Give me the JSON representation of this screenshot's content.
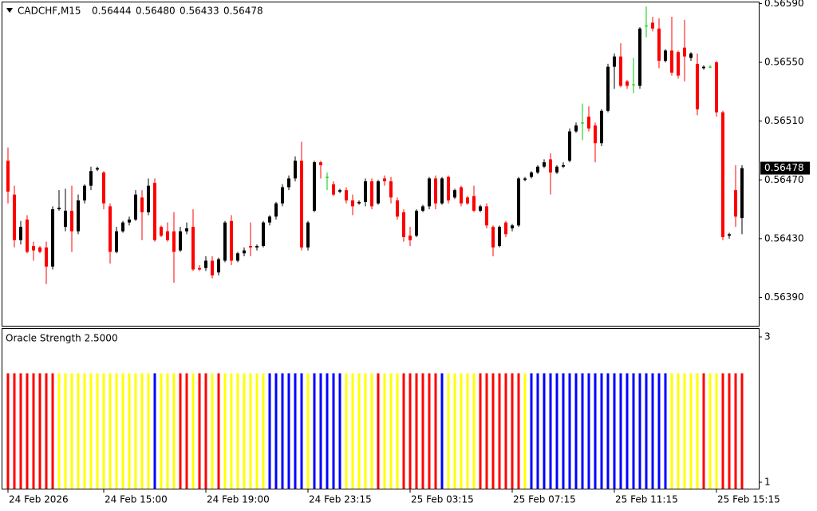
{
  "chart_data": [
    {
      "type": "candlestick",
      "title": "CADCHF,M15",
      "ohlc_labels": [
        "0.56444",
        "0.56480",
        "0.56433",
        "0.56478"
      ],
      "categories": [
        "24 Feb 2026",
        null,
        null,
        null,
        null,
        null,
        null,
        null,
        null,
        null,
        null,
        null,
        null,
        null,
        null,
        "24 Feb 15:00",
        null,
        null,
        null,
        null,
        null,
        null,
        null,
        null,
        null,
        null,
        null,
        null,
        null,
        null,
        null,
        "24 Feb 19:00",
        null,
        null,
        null,
        null,
        null,
        null,
        null,
        null,
        null,
        null,
        null,
        null,
        null,
        null,
        null,
        "24 Feb 23:15",
        null,
        null,
        null,
        null,
        null,
        null,
        null,
        null,
        null,
        null,
        null,
        null,
        null,
        null,
        null,
        "25 Feb 03:15",
        null,
        null,
        null,
        null,
        null,
        null,
        null,
        null,
        null,
        null,
        null,
        null,
        null,
        null,
        null,
        "25 Feb 07:15",
        null,
        null,
        null,
        null,
        null,
        null,
        null,
        null,
        null,
        null,
        null,
        null,
        null,
        null,
        null,
        "25 Feb 11:15",
        null,
        null,
        null,
        null,
        null,
        null,
        null,
        null,
        null,
        null,
        null,
        null,
        null,
        null,
        null,
        "25 Feb 15:15",
        null,
        null,
        null,
        null
      ],
      "open": [
        0.56483,
        0.5646,
        0.56429,
        0.56443,
        0.56425,
        0.56424,
        0.56424,
        0.56411,
        0.5645,
        0.56438,
        0.56449,
        0.56435,
        0.56456,
        0.56466,
        0.56477,
        0.56475,
        0.56452,
        0.56421,
        0.56435,
        0.56441,
        0.56443,
        0.56458,
        0.56448,
        0.56468,
        0.56438,
        0.56435,
        0.56435,
        0.56422,
        0.56435,
        0.56438,
        0.5641,
        0.5641,
        0.56415,
        0.56407,
        0.56415,
        0.56442,
        0.56415,
        0.5642,
        0.56425,
        0.56424,
        0.56425,
        0.56441,
        0.56445,
        0.56454,
        0.56465,
        0.56471,
        0.56483,
        0.56424,
        0.56449,
        0.56482,
        0.56472,
        0.56467,
        0.56462,
        0.56463,
        0.56456,
        0.56454,
        0.56455,
        0.56469,
        0.56454,
        0.56471,
        0.56469,
        0.56456,
        0.56448,
        0.56432,
        0.56432,
        0.56449,
        0.56452,
        0.56471,
        0.56454,
        0.56472,
        0.56458,
        0.56465,
        0.56458,
        0.56459,
        0.56449,
        0.56452,
        0.56438,
        0.56425,
        0.56441,
        0.56437,
        0.56439,
        0.5647,
        0.56472,
        0.56475,
        0.56479,
        0.56484,
        0.56475,
        0.56479,
        0.56483,
        0.56503,
        0.56509,
        0.56513,
        0.56507,
        0.56495,
        0.56517,
        0.56547,
        0.56554,
        0.56537,
        0.56535,
        0.56534,
        0.56575,
        0.56577,
        0.56573,
        0.56551,
        0.56558,
        0.56557,
        0.5656,
        0.56553,
        0.56549,
        0.56546,
        0.56547,
        0.5655,
        0.56516,
        0.56432,
        0.56463,
        0.56444
      ],
      "high": [
        0.56492,
        0.56466,
        0.56442,
        0.56446,
        0.56428,
        0.56425,
        0.56428,
        0.56452,
        0.56463,
        0.56464,
        0.56466,
        0.5646,
        0.56467,
        0.56479,
        0.56479,
        0.56476,
        0.56454,
        0.56438,
        0.56442,
        0.56445,
        0.56463,
        0.56463,
        0.56471,
        0.56471,
        0.56439,
        0.56441,
        0.56448,
        0.56438,
        0.56441,
        0.5645,
        0.56412,
        0.56418,
        0.56418,
        0.56417,
        0.56442,
        0.56446,
        0.56421,
        0.56424,
        0.56441,
        0.56426,
        0.56442,
        0.56446,
        0.56455,
        0.56467,
        0.56473,
        0.56486,
        0.56496,
        0.56442,
        0.56483,
        0.56483,
        0.56475,
        0.56469,
        0.56464,
        0.56465,
        0.5646,
        0.56456,
        0.56471,
        0.56471,
        0.5647,
        0.56473,
        0.56472,
        0.56458,
        0.5645,
        0.56438,
        0.5645,
        0.56453,
        0.56472,
        0.56473,
        0.56472,
        0.56473,
        0.56464,
        0.56466,
        0.56459,
        0.56466,
        0.56453,
        0.56454,
        0.56439,
        0.56439,
        0.56442,
        0.5644,
        0.56472,
        0.56472,
        0.56476,
        0.5648,
        0.56484,
        0.56488,
        0.5648,
        0.56482,
        0.56505,
        0.56509,
        0.56522,
        0.5652,
        0.56509,
        0.56518,
        0.56549,
        0.56556,
        0.56563,
        0.56538,
        0.56553,
        0.56574,
        0.56588,
        0.56581,
        0.5658,
        0.56559,
        0.56581,
        0.56558,
        0.56579,
        0.56557,
        0.56556,
        0.56548,
        0.56548,
        0.56551,
        0.56517,
        0.56434,
        0.5648,
        0.5648
      ],
      "low": [
        0.56454,
        0.56424,
        0.56426,
        0.5642,
        0.56415,
        0.5642,
        0.56399,
        0.56409,
        0.56449,
        0.56435,
        0.56421,
        0.56433,
        0.56454,
        0.56463,
        0.56476,
        0.5645,
        0.56413,
        0.5642,
        0.56434,
        0.56439,
        0.56442,
        0.56429,
        0.56446,
        0.56428,
        0.56431,
        0.56428,
        0.564,
        0.56421,
        0.56433,
        0.56408,
        0.56408,
        0.56408,
        0.56403,
        0.56405,
        0.56414,
        0.56412,
        0.56414,
        0.56418,
        0.56418,
        0.56422,
        0.56424,
        0.56439,
        0.56443,
        0.56452,
        0.56463,
        0.56469,
        0.56422,
        0.56422,
        0.56448,
        0.56471,
        0.56463,
        0.56459,
        0.56461,
        0.56454,
        0.56446,
        0.56453,
        0.56452,
        0.5645,
        0.56453,
        0.56466,
        0.56454,
        0.56443,
        0.56428,
        0.56425,
        0.56431,
        0.56448,
        0.5645,
        0.5645,
        0.56453,
        0.56454,
        0.56457,
        0.56452,
        0.56453,
        0.56448,
        0.56448,
        0.56437,
        0.56418,
        0.56424,
        0.56431,
        0.56435,
        0.56438,
        0.56469,
        0.56471,
        0.56474,
        0.56478,
        0.5646,
        0.56474,
        0.56478,
        0.56482,
        0.56502,
        0.56497,
        0.56503,
        0.56482,
        0.56493,
        0.56516,
        0.56532,
        0.56533,
        0.56532,
        0.56529,
        0.56532,
        0.56567,
        0.56571,
        0.56546,
        0.5655,
        0.56541,
        0.56539,
        0.56537,
        0.56551,
        0.56514,
        0.56545,
        0.56546,
        0.56513,
        0.56429,
        0.5643,
        0.56438,
        0.56433
      ],
      "close": [
        0.56462,
        0.56429,
        0.56438,
        0.56421,
        0.56422,
        0.56421,
        0.56411,
        0.5645,
        0.56451,
        0.56449,
        0.56435,
        0.56456,
        0.56466,
        0.56476,
        0.56478,
        0.56454,
        0.56421,
        0.56435,
        0.56441,
        0.56443,
        0.5646,
        0.56448,
        0.56466,
        0.56429,
        0.56432,
        0.56429,
        0.56421,
        0.56435,
        0.56437,
        0.56409,
        0.56409,
        0.56415,
        0.56405,
        0.56416,
        0.56441,
        0.56415,
        0.5642,
        0.56422,
        0.56424,
        0.56425,
        0.56441,
        0.56445,
        0.56454,
        0.56465,
        0.56471,
        0.56483,
        0.56424,
        0.56441,
        0.56482,
        0.5648,
        0.56472,
        0.5646,
        0.56463,
        0.56456,
        0.56452,
        0.56455,
        0.56469,
        0.56452,
        0.56469,
        0.56469,
        0.56458,
        0.56445,
        0.56431,
        0.56429,
        0.56449,
        0.56452,
        0.56471,
        0.56454,
        0.56471,
        0.56456,
        0.56463,
        0.56454,
        0.56454,
        0.56449,
        0.56452,
        0.56439,
        0.56424,
        0.56438,
        0.56433,
        0.56439,
        0.56471,
        0.56471,
        0.56475,
        0.56479,
        0.56482,
        0.56475,
        0.56479,
        0.5648,
        0.56503,
        0.56507,
        0.56509,
        0.56505,
        0.56495,
        0.56517,
        0.56547,
        0.56554,
        0.56534,
        0.56534,
        0.56535,
        0.56573,
        0.56575,
        0.56573,
        0.56551,
        0.56558,
        0.56543,
        0.56541,
        0.56554,
        0.56556,
        0.56518,
        0.56547,
        0.56547,
        0.56516,
        0.56431,
        0.56433,
        0.56445,
        0.56478
      ],
      "up_color": "#000000",
      "down_color": "#ff0000",
      "doji_color": "#00cc00",
      "ylim": [
        0.563707,
        0.565908
      ],
      "yticks": [
        {
          "value": 0.5659,
          "label": "0.56590"
        },
        {
          "value": 0.5655,
          "label": "0.56550"
        },
        {
          "value": 0.5651,
          "label": "0.56510"
        },
        {
          "value": 0.5647,
          "label": "0.56470"
        },
        {
          "value": 0.5643,
          "label": "0.56430"
        },
        {
          "value": 0.5639,
          "label": "0.56390"
        }
      ],
      "last_price": 0.56478
    },
    {
      "type": "bar",
      "title": "Oracle Strength 2.5000",
      "values": [
        2.5,
        2.5,
        2.5,
        2.5,
        2.5,
        2.5,
        2.5,
        2.5,
        2.5,
        2.5,
        2.5,
        2.5,
        2.5,
        2.5,
        2.5,
        2.5,
        2.5,
        2.5,
        2.5,
        2.5,
        2.5,
        2.5,
        2.5,
        2.5,
        2.5,
        2.5,
        2.5,
        2.5,
        2.5,
        2.5,
        2.5,
        2.5,
        2.5,
        2.5,
        2.5,
        2.5,
        2.5,
        2.5,
        2.5,
        2.5,
        2.5,
        2.5,
        2.5,
        2.5,
        2.5,
        2.5,
        2.5,
        2.5,
        2.5,
        2.5,
        2.5,
        2.5,
        2.5,
        2.5,
        2.5,
        2.5,
        2.5,
        2.5,
        2.5,
        2.5,
        2.5,
        2.5,
        2.5,
        2.5,
        2.5,
        2.5,
        2.5,
        2.5,
        2.5,
        2.5,
        2.5,
        2.5,
        2.5,
        2.5,
        2.5,
        2.5,
        2.5,
        2.5,
        2.5,
        2.5,
        2.5,
        2.5,
        2.5,
        2.5,
        2.5,
        2.5,
        2.5,
        2.5,
        2.5,
        2.5,
        2.5,
        2.5,
        2.5,
        2.5,
        2.5,
        2.5,
        2.5,
        2.5,
        2.5,
        2.5,
        2.5,
        2.5,
        2.5,
        2.5,
        2.5,
        2.5,
        2.5,
        2.5,
        2.5,
        2.5,
        2.5,
        2.5,
        2.5,
        2.5,
        2.5,
        2.5
      ],
      "colors": [
        "red",
        "red",
        "red",
        "red",
        "red",
        "red",
        "red",
        "red",
        "yellow",
        "yellow",
        "yellow",
        "yellow",
        "yellow",
        "yellow",
        "yellow",
        "yellow",
        "yellow",
        "yellow",
        "yellow",
        "yellow",
        "yellow",
        "yellow",
        "yellow",
        "blue",
        "yellow",
        "yellow",
        "yellow",
        "red",
        "red",
        "yellow",
        "red",
        "red",
        "yellow",
        "red",
        "yellow",
        "yellow",
        "yellow",
        "yellow",
        "yellow",
        "yellow",
        "yellow",
        "blue",
        "blue",
        "blue",
        "blue",
        "blue",
        "blue",
        "yellow",
        "blue",
        "blue",
        "blue",
        "blue",
        "blue",
        "yellow",
        "yellow",
        "yellow",
        "yellow",
        "yellow",
        "red",
        "yellow",
        "yellow",
        "yellow",
        "red",
        "red",
        "red",
        "red",
        "red",
        "red",
        "blue",
        "yellow",
        "yellow",
        "yellow",
        "yellow",
        "yellow",
        "red",
        "red",
        "red",
        "red",
        "red",
        "red",
        "red",
        "yellow",
        "blue",
        "blue",
        "blue",
        "blue",
        "blue",
        "blue",
        "blue",
        "blue",
        "blue",
        "blue",
        "blue",
        "blue",
        "blue",
        "blue",
        "blue",
        "blue",
        "blue",
        "blue",
        "blue",
        "blue",
        "blue",
        "blue",
        "yellow",
        "yellow",
        "yellow",
        "yellow",
        "yellow",
        "red",
        "yellow",
        "yellow",
        "red",
        "red",
        "red",
        "red"
      ],
      "ylim": [
        0.912,
        3.11
      ],
      "yticks": [
        3,
        1
      ]
    }
  ]
}
